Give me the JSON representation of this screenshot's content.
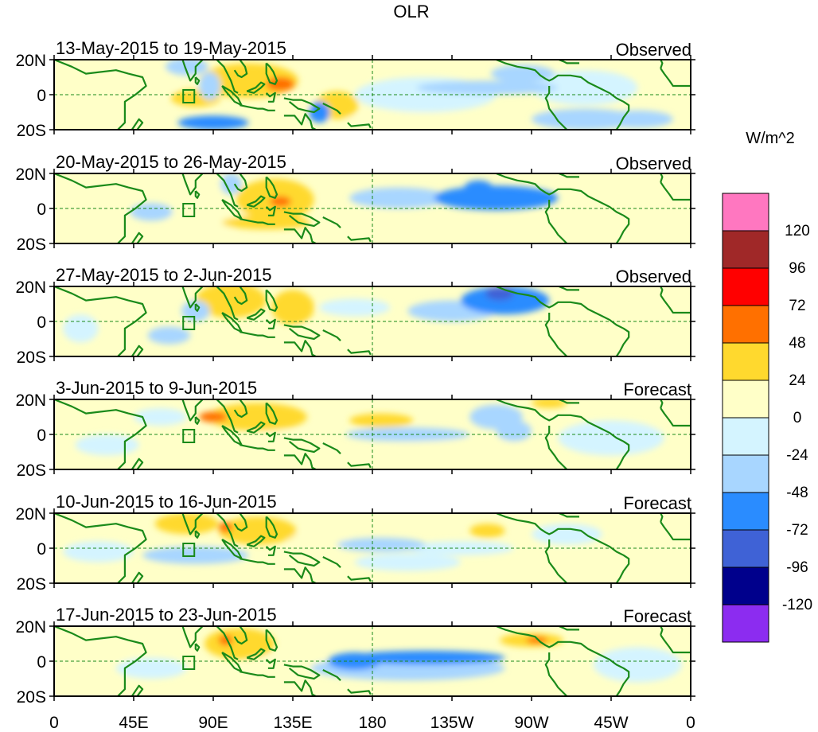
{
  "chart_data": {
    "type": "heatmap",
    "title": "OLR",
    "variable": "OLR",
    "units": "W/m^2",
    "x_tick_labels": [
      "0",
      "45E",
      "90E",
      "135E",
      "180",
      "135W",
      "90W",
      "45W",
      "0"
    ],
    "x_ticks_deg": [
      0,
      45,
      90,
      135,
      180,
      225,
      270,
      315,
      360
    ],
    "x_range_deg": [
      0,
      360
    ],
    "y_tick_labels": [
      "20N",
      "0",
      "20S"
    ],
    "y_ticks_deg": [
      20,
      0,
      -20
    ],
    "y_range_deg": [
      -20,
      20
    ],
    "reference_lines": [
      "equator",
      "180"
    ],
    "colorbar": {
      "label": "W/m^2",
      "levels": [
        120,
        96,
        72,
        48,
        24,
        0,
        -24,
        -48,
        -72,
        -96,
        -120
      ],
      "colors": [
        "#ff77c0",
        "#a02828",
        "#ff0000",
        "#ff7000",
        "#ffd92e",
        "#ffffc8",
        "#d4f4ff",
        "#a8d6ff",
        "#2a8cff",
        "#3f62d6",
        "#00008c",
        "#8c2cf0"
      ]
    },
    "panels": [
      {
        "period": "13-May-2015 to 19-May-2015",
        "status": "Observed",
        "blobs": [
          {
            "lon": 110,
            "lat": 8,
            "rx": 28,
            "ry": 10,
            "v": 30
          },
          {
            "lon": 128,
            "lat": 6,
            "rx": 8,
            "ry": 4,
            "v": 55
          },
          {
            "lon": 50,
            "lat": 6,
            "rx": 18,
            "ry": 8,
            "v": 18
          },
          {
            "lon": 80,
            "lat": -2,
            "rx": 14,
            "ry": 5,
            "v": 25
          },
          {
            "lon": 160,
            "lat": -6,
            "rx": 12,
            "ry": 8,
            "v": 28
          },
          {
            "lon": 135,
            "lat": -6,
            "rx": 10,
            "ry": 5,
            "v": 22
          },
          {
            "lon": 150,
            "lat": -10,
            "rx": 6,
            "ry": 6,
            "v": -60
          },
          {
            "lon": 90,
            "lat": -16,
            "rx": 20,
            "ry": 4,
            "v": -55
          },
          {
            "lon": 75,
            "lat": 16,
            "rx": 12,
            "ry": 5,
            "v": -40
          },
          {
            "lon": 88,
            "lat": 5,
            "rx": 6,
            "ry": 8,
            "v": -30
          },
          {
            "lon": 245,
            "lat": 4,
            "rx": 40,
            "ry": 4,
            "v": -35
          },
          {
            "lon": 265,
            "lat": 12,
            "rx": 18,
            "ry": 5,
            "v": -30
          },
          {
            "lon": 300,
            "lat": -14,
            "rx": 30,
            "ry": 6,
            "v": -40
          },
          {
            "lon": 330,
            "lat": -14,
            "rx": 20,
            "ry": 5,
            "v": -25
          },
          {
            "lon": 210,
            "lat": 0,
            "rx": 40,
            "ry": 10,
            "v": -12
          },
          {
            "lon": 300,
            "lat": 4,
            "rx": 30,
            "ry": 10,
            "v": -15
          },
          {
            "lon": 20,
            "lat": 10,
            "rx": 18,
            "ry": 8,
            "v": 12
          },
          {
            "lon": 200,
            "lat": -15,
            "rx": 35,
            "ry": 5,
            "v": 10
          }
        ]
      },
      {
        "period": "20-May-2015 to 26-May-2015",
        "status": "Observed",
        "blobs": [
          {
            "lon": 125,
            "lat": 5,
            "rx": 22,
            "ry": 12,
            "v": 30
          },
          {
            "lon": 128,
            "lat": 4,
            "rx": 6,
            "ry": 3,
            "v": 60
          },
          {
            "lon": 85,
            "lat": 14,
            "rx": 18,
            "ry": 6,
            "v": 20
          },
          {
            "lon": 120,
            "lat": -8,
            "rx": 25,
            "ry": 4,
            "v": 25
          },
          {
            "lon": 90,
            "lat": -6,
            "rx": 25,
            "ry": 6,
            "v": 18
          },
          {
            "lon": 250,
            "lat": 6,
            "rx": 35,
            "ry": 7,
            "v": -50
          },
          {
            "lon": 240,
            "lat": 12,
            "rx": 8,
            "ry": 4,
            "v": -70
          },
          {
            "lon": 100,
            "lat": 14,
            "rx": 6,
            "ry": 6,
            "v": -35
          },
          {
            "lon": 55,
            "lat": -2,
            "rx": 12,
            "ry": 5,
            "v": -30
          },
          {
            "lon": 195,
            "lat": 6,
            "rx": 28,
            "ry": 6,
            "v": -25
          },
          {
            "lon": 175,
            "lat": -8,
            "rx": 25,
            "ry": 5,
            "v": 12
          },
          {
            "lon": 300,
            "lat": -12,
            "rx": 40,
            "ry": 8,
            "v": 15
          },
          {
            "lon": 30,
            "lat": 10,
            "rx": 20,
            "ry": 8,
            "v": 10
          }
        ]
      },
      {
        "period": "27-May-2015 to 2-Jun-2015",
        "status": "Observed",
        "blobs": [
          {
            "lon": 100,
            "lat": 12,
            "rx": 20,
            "ry": 10,
            "v": 25
          },
          {
            "lon": 135,
            "lat": 8,
            "rx": 12,
            "ry": 10,
            "v": 28
          },
          {
            "lon": 150,
            "lat": -6,
            "rx": 15,
            "ry": 5,
            "v": 20
          },
          {
            "lon": 255,
            "lat": 12,
            "rx": 25,
            "ry": 8,
            "v": -50
          },
          {
            "lon": 252,
            "lat": 16,
            "rx": 8,
            "ry": 4,
            "v": -75
          },
          {
            "lon": 225,
            "lat": 6,
            "rx": 25,
            "ry": 6,
            "v": -30
          },
          {
            "lon": 65,
            "lat": -8,
            "rx": 12,
            "ry": 5,
            "v": -35
          },
          {
            "lon": 15,
            "lat": -4,
            "rx": 10,
            "ry": 8,
            "v": -20
          },
          {
            "lon": 80,
            "lat": 6,
            "rx": 8,
            "ry": 6,
            "v": -30
          },
          {
            "lon": 300,
            "lat": -8,
            "rx": 40,
            "ry": 10,
            "v": 12
          },
          {
            "lon": 190,
            "lat": -8,
            "rx": 30,
            "ry": 6,
            "v": 10
          },
          {
            "lon": 170,
            "lat": 8,
            "rx": 20,
            "ry": 5,
            "v": -15
          }
        ]
      },
      {
        "period": "3-Jun-2015 to 9-Jun-2015",
        "status": "Forecast",
        "blobs": [
          {
            "lon": 115,
            "lat": 10,
            "rx": 28,
            "ry": 8,
            "v": 30
          },
          {
            "lon": 90,
            "lat": 10,
            "rx": 8,
            "ry": 3,
            "v": 55
          },
          {
            "lon": 125,
            "lat": -4,
            "rx": 22,
            "ry": 6,
            "v": 22
          },
          {
            "lon": 185,
            "lat": 8,
            "rx": 18,
            "ry": 4,
            "v": 30
          },
          {
            "lon": 200,
            "lat": 0,
            "rx": 35,
            "ry": 4,
            "v": -35
          },
          {
            "lon": 250,
            "lat": 10,
            "rx": 15,
            "ry": 7,
            "v": -40
          },
          {
            "lon": 260,
            "lat": 2,
            "rx": 10,
            "ry": 6,
            "v": -35
          },
          {
            "lon": 30,
            "lat": -6,
            "rx": 18,
            "ry": 6,
            "v": -22
          },
          {
            "lon": 60,
            "lat": 10,
            "rx": 15,
            "ry": 5,
            "v": -15
          },
          {
            "lon": 230,
            "lat": -10,
            "rx": 45,
            "ry": 6,
            "v": 12
          },
          {
            "lon": 315,
            "lat": -2,
            "rx": 30,
            "ry": 10,
            "v": -12
          },
          {
            "lon": 280,
            "lat": 18,
            "rx": 10,
            "ry": 3,
            "v": 25
          }
        ]
      },
      {
        "period": "10-Jun-2015 to 16-Jun-2015",
        "status": "Forecast",
        "blobs": [
          {
            "lon": 75,
            "lat": 14,
            "rx": 18,
            "ry": 6,
            "v": 30
          },
          {
            "lon": 115,
            "lat": 10,
            "rx": 22,
            "ry": 8,
            "v": 30
          },
          {
            "lon": 97,
            "lat": 12,
            "rx": 4,
            "ry": 3,
            "v": 55
          },
          {
            "lon": 150,
            "lat": 4,
            "rx": 18,
            "ry": 6,
            "v": 20
          },
          {
            "lon": 185,
            "lat": 2,
            "rx": 25,
            "ry": 4,
            "v": -45
          },
          {
            "lon": 200,
            "lat": -8,
            "rx": 30,
            "ry": 5,
            "v": -22
          },
          {
            "lon": 80,
            "lat": -4,
            "rx": 30,
            "ry": 5,
            "v": -25
          },
          {
            "lon": 25,
            "lat": -2,
            "rx": 20,
            "ry": 6,
            "v": -18
          },
          {
            "lon": 245,
            "lat": 10,
            "rx": 10,
            "ry": 4,
            "v": 28
          },
          {
            "lon": 290,
            "lat": 8,
            "rx": 20,
            "ry": 6,
            "v": -20
          },
          {
            "lon": 230,
            "lat": 0,
            "rx": 30,
            "ry": 4,
            "v": -20
          },
          {
            "lon": 300,
            "lat": -12,
            "rx": 40,
            "ry": 8,
            "v": 12
          }
        ]
      },
      {
        "period": "17-Jun-2015 to 23-Jun-2015",
        "status": "Forecast",
        "blobs": [
          {
            "lon": 105,
            "lat": 10,
            "rx": 20,
            "ry": 9,
            "v": 30
          },
          {
            "lon": 97,
            "lat": 12,
            "rx": 4,
            "ry": 3,
            "v": 55
          },
          {
            "lon": 130,
            "lat": -2,
            "rx": 22,
            "ry": 6,
            "v": 20
          },
          {
            "lon": 270,
            "lat": 12,
            "rx": 18,
            "ry": 4,
            "v": 32
          },
          {
            "lon": 273,
            "lat": 12,
            "rx": 6,
            "ry": 2,
            "v": 55
          },
          {
            "lon": 210,
            "lat": 2,
            "rx": 45,
            "ry": 4,
            "v": -55
          },
          {
            "lon": 170,
            "lat": 0,
            "rx": 15,
            "ry": 5,
            "v": -50
          },
          {
            "lon": 200,
            "lat": -4,
            "rx": 55,
            "ry": 7,
            "v": -28
          },
          {
            "lon": 55,
            "lat": -4,
            "rx": 20,
            "ry": 6,
            "v": -15
          },
          {
            "lon": 330,
            "lat": -2,
            "rx": 25,
            "ry": 10,
            "v": -12
          },
          {
            "lon": 30,
            "lat": 8,
            "rx": 20,
            "ry": 8,
            "v": 10
          }
        ]
      }
    ]
  }
}
